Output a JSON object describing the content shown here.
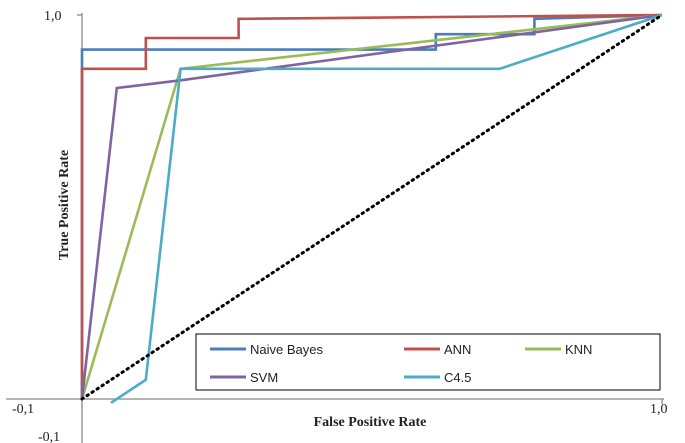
{
  "chart_data": {
    "type": "line",
    "xlabel": "False Positive Rate",
    "ylabel": "True Positive Rate",
    "xlim": [
      -0.1,
      1.0
    ],
    "ylim": [
      -0.1,
      1.0
    ],
    "x_tick_labels": [
      {
        "value": -0.1,
        "label": "-0,1"
      },
      {
        "value": 1.0,
        "label": "1,0"
      }
    ],
    "y_tick_labels": [
      {
        "value": 1.0,
        "label": "1,0"
      },
      {
        "value": -0.1,
        "label": "-0,1"
      }
    ],
    "legend_position": "bottom-right",
    "grid": false,
    "series": [
      {
        "name": "Naive Bayes",
        "color": "#4a7ebb",
        "points": [
          [
            0,
            0
          ],
          [
            0,
            0.91
          ],
          [
            0.61,
            0.91
          ],
          [
            0.61,
            0.95
          ],
          [
            0.78,
            0.95
          ],
          [
            0.78,
            0.99
          ],
          [
            1.0,
            1.0
          ]
        ]
      },
      {
        "name": "ANN",
        "color": "#c0504d",
        "points": [
          [
            0,
            0
          ],
          [
            0,
            0.86
          ],
          [
            0.11,
            0.86
          ],
          [
            0.11,
            0.94
          ],
          [
            0.27,
            0.94
          ],
          [
            0.27,
            0.99
          ],
          [
            1.0,
            1.0
          ]
        ]
      },
      {
        "name": "KNN",
        "color": "#9bbb59",
        "points": [
          [
            0,
            0
          ],
          [
            0.17,
            0.86
          ],
          [
            1.0,
            1.0
          ]
        ]
      },
      {
        "name": "SVM",
        "color": "#8064a2",
        "points": [
          [
            0,
            0
          ],
          [
            0.06,
            0.81
          ],
          [
            0.17,
            0.83
          ],
          [
            1.0,
            1.0
          ]
        ]
      },
      {
        "name": "C4.5",
        "color": "#4bacc6",
        "points": [
          [
            0.05,
            -0.01
          ],
          [
            0.11,
            0.05
          ],
          [
            0.17,
            0.86
          ],
          [
            0.72,
            0.86
          ],
          [
            1.0,
            1.0
          ]
        ]
      },
      {
        "name": "",
        "color": "#000000",
        "dashed": true,
        "points": [
          [
            0,
            0
          ],
          [
            1.0,
            1.0
          ]
        ]
      }
    ]
  }
}
